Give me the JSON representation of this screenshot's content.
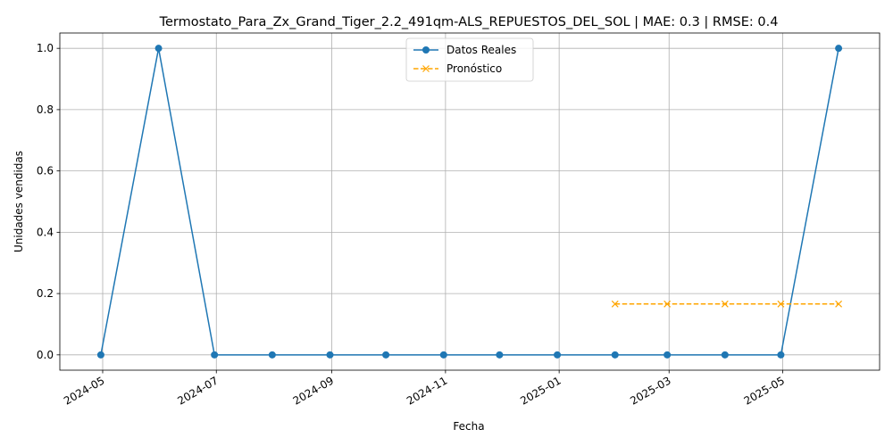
{
  "chart_data": {
    "type": "line",
    "title": "Termostato_Para_Zx_Grand_Tiger_2.2_491qm-ALS_REPUESTOS_DEL_SOL | MAE: 0.3 | RMSE: 0.4",
    "xlabel": "Fecha",
    "ylabel": "Unidades vendidas",
    "ylim": [
      -0.05,
      1.05
    ],
    "xlim": [
      "2024-04-08",
      "2025-06-22"
    ],
    "grid": true,
    "legend_position": "upper center",
    "x_ticks": [
      "2024-05",
      "2024-07",
      "2024-09",
      "2024-11",
      "2025-01",
      "2025-03",
      "2025-05"
    ],
    "y_ticks": [
      "0.0",
      "0.2",
      "0.4",
      "0.6",
      "0.8",
      "1.0"
    ],
    "series": [
      {
        "name": "Datos Reales",
        "color": "#1f77b4",
        "marker": "circle",
        "linestyle": "solid",
        "x": [
          "2024-04-30",
          "2024-05-31",
          "2024-06-30",
          "2024-07-31",
          "2024-08-31",
          "2024-09-30",
          "2024-10-31",
          "2024-11-30",
          "2024-12-31",
          "2025-01-31",
          "2025-02-28",
          "2025-03-31",
          "2025-04-30",
          "2025-05-31"
        ],
        "values": [
          0,
          1,
          0,
          0,
          0,
          0,
          0,
          0,
          0,
          0,
          0,
          0,
          0,
          1
        ]
      },
      {
        "name": "Pronóstico",
        "color": "#ffa500",
        "marker": "x",
        "linestyle": "dashed",
        "x": [
          "2025-01-31",
          "2025-02-28",
          "2025-03-31",
          "2025-04-30",
          "2025-05-31"
        ],
        "values": [
          0.166,
          0.166,
          0.166,
          0.166,
          0.166
        ]
      }
    ]
  }
}
